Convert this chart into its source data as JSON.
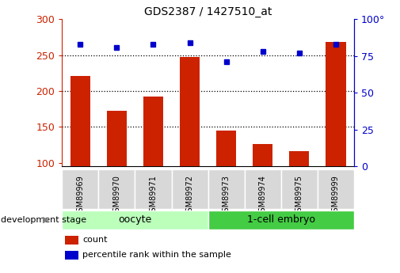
{
  "title": "GDS2387 / 1427510_at",
  "samples": [
    "GSM89969",
    "GSM89970",
    "GSM89971",
    "GSM89972",
    "GSM89973",
    "GSM89974",
    "GSM89975",
    "GSM89999"
  ],
  "counts": [
    221,
    172,
    192,
    247,
    145,
    126,
    116,
    268
  ],
  "percentiles": [
    83,
    81,
    83,
    84,
    71,
    78,
    77,
    83
  ],
  "bar_color": "#cc2200",
  "dot_color": "#0000cc",
  "ylim_left": [
    95,
    300
  ],
  "ylim_right": [
    0,
    100
  ],
  "yticks_left": [
    100,
    150,
    200,
    250,
    300
  ],
  "yticks_right": [
    0,
    25,
    50,
    75,
    100
  ],
  "yticklabels_right": [
    "0",
    "25",
    "50",
    "75",
    "100°"
  ],
  "groups": [
    {
      "label": "oocyte",
      "start": 0,
      "end": 4,
      "color": "#aaffaa"
    },
    {
      "label": "1-cell embryo",
      "start": 4,
      "end": 8,
      "color": "#44cc44"
    }
  ],
  "group_label": "development stage",
  "grid_dotted_at": [
    150,
    200,
    250
  ],
  "bar_bottom": 95,
  "col_bg": "#dddddd",
  "col_border": "#aaaaaa"
}
